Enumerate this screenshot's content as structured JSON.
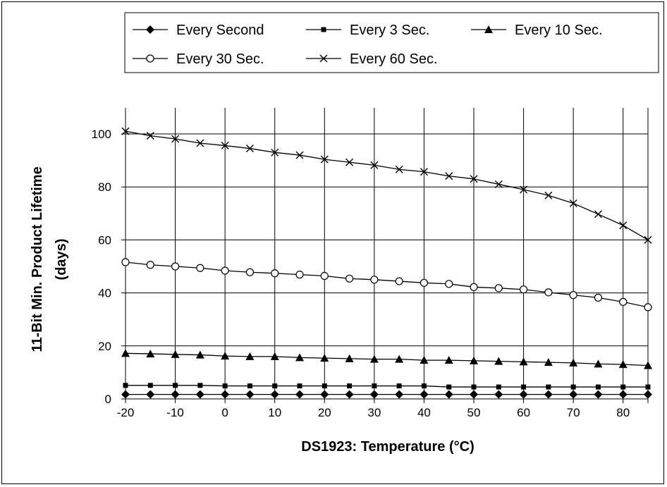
{
  "chart_data": {
    "type": "line",
    "title": "",
    "xlabel": "DS1923: Temperature (°C)",
    "ylabel_lines": [
      "11-Bit Min. Product Lifetime",
      "(days)"
    ],
    "x": [
      -20,
      -15,
      -10,
      -5,
      0,
      5,
      10,
      15,
      20,
      25,
      30,
      35,
      40,
      45,
      50,
      55,
      60,
      65,
      70,
      75,
      80,
      85
    ],
    "xlim": [
      -20,
      85
    ],
    "ylim": [
      0,
      110
    ],
    "x_ticks": [
      -20,
      -10,
      0,
      10,
      20,
      30,
      40,
      50,
      60,
      70,
      80
    ],
    "y_ticks": [
      0,
      20,
      40,
      60,
      80,
      100
    ],
    "grid": true,
    "legend_position": "top",
    "series": [
      {
        "name": "Every Second",
        "marker": "diamond",
        "values": [
          1.7,
          1.7,
          1.7,
          1.7,
          1.7,
          1.7,
          1.7,
          1.7,
          1.7,
          1.7,
          1.7,
          1.7,
          1.7,
          1.7,
          1.7,
          1.7,
          1.7,
          1.7,
          1.7,
          1.7,
          1.7,
          1.7
        ]
      },
      {
        "name": "Every 3 Sec.",
        "marker": "square",
        "values": [
          5.1,
          5.1,
          5.1,
          5.1,
          4.9,
          4.9,
          4.9,
          4.9,
          4.9,
          4.9,
          4.9,
          4.9,
          4.9,
          4.5,
          4.5,
          4.5,
          4.5,
          4.5,
          4.5,
          4.5,
          4.5,
          4.5
        ]
      },
      {
        "name": "Every 10 Sec.",
        "marker": "triangle",
        "values": [
          17.2,
          17.0,
          16.8,
          16.6,
          16.2,
          16.0,
          16.0,
          15.6,
          15.4,
          15.2,
          15.0,
          15.0,
          14.6,
          14.6,
          14.4,
          14.2,
          14.0,
          13.8,
          13.6,
          13.2,
          13.0,
          12.6
        ]
      },
      {
        "name": "Every 30 Sec.",
        "marker": "circle",
        "values": [
          51.6,
          50.6,
          50.0,
          49.4,
          48.4,
          47.8,
          47.4,
          46.9,
          46.4,
          45.4,
          45.0,
          44.4,
          43.8,
          43.4,
          42.2,
          41.8,
          41.3,
          40.2,
          39.2,
          38.2,
          36.6,
          34.6
        ]
      },
      {
        "name": "Every 60 Sec.",
        "marker": "x",
        "values": [
          101.0,
          99.3,
          98.1,
          96.5,
          95.6,
          94.5,
          93.0,
          92.0,
          90.4,
          89.3,
          88.2,
          86.6,
          85.7,
          84.1,
          83.0,
          81.0,
          79.0,
          76.8,
          73.8,
          69.7,
          65.5,
          60.0
        ]
      }
    ]
  }
}
